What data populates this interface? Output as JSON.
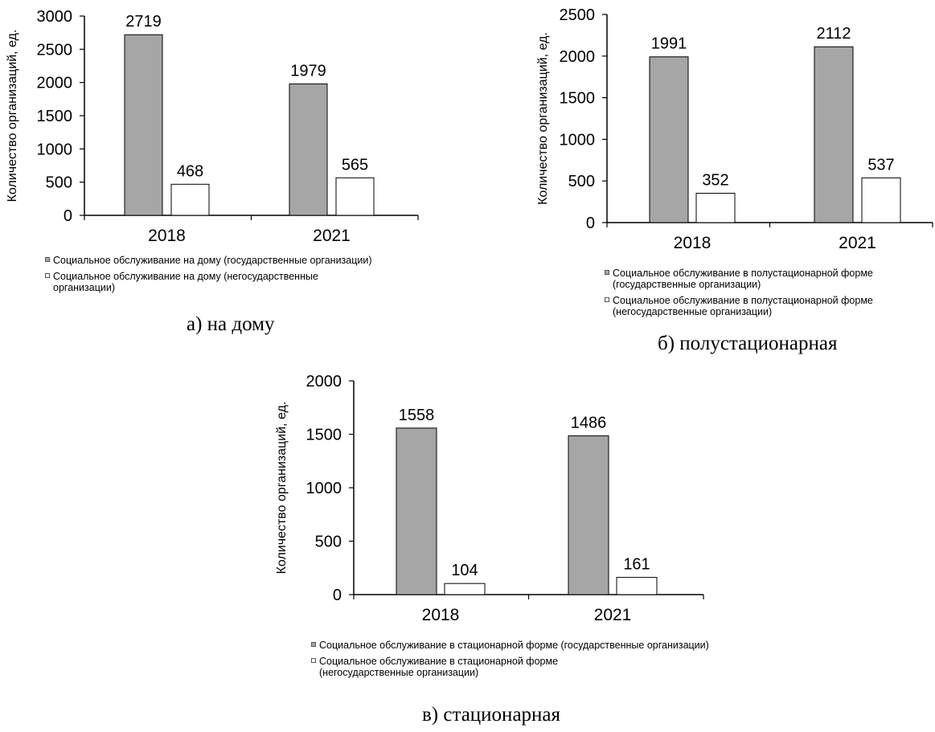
{
  "colors": {
    "state": "#a6a6a6",
    "nonstate": "#ffffff",
    "stroke": "#000000"
  },
  "chart_data": [
    {
      "id": "a",
      "type": "bar",
      "categories": [
        "2018",
        "2021"
      ],
      "series": [
        {
          "name": "Социальное обслуживание на дому (государственные организации)",
          "values": [
            2719,
            1979
          ]
        },
        {
          "name": "Социальное обслуживание на дому (негосударственные организации)",
          "values": [
            468,
            565
          ]
        }
      ],
      "ylabel": "Количество организаций, ед.",
      "ylim": [
        0,
        3000
      ],
      "yticks": [
        0,
        500,
        1000,
        1500,
        2000,
        2500,
        3000
      ],
      "legend": "bottom",
      "caption": "а) на дому"
    },
    {
      "id": "b",
      "type": "bar",
      "categories": [
        "2018",
        "2021"
      ],
      "series": [
        {
          "name": "Социальное обслуживание в полустационарной форме (государственные организации)",
          "values": [
            1991,
            2112
          ]
        },
        {
          "name": "Социальное обслуживание в полустационарной форме (негосударственные организации)",
          "values": [
            352,
            537
          ]
        }
      ],
      "ylabel": "Количество организаций, ед.",
      "ylim": [
        0,
        2500
      ],
      "yticks": [
        0,
        500,
        1000,
        1500,
        2000,
        2500
      ],
      "legend": "bottom",
      "caption": "б) полустационарная"
    },
    {
      "id": "c",
      "type": "bar",
      "categories": [
        "2018",
        "2021"
      ],
      "series": [
        {
          "name": "Социальное обслуживание в стационарной форме (государственные организации)",
          "values": [
            1558,
            1486
          ]
        },
        {
          "name": "Социальное обслуживание в стационарной форме (негосударственные организации)",
          "values": [
            104,
            161
          ]
        }
      ],
      "ylabel": "Количество организаций, ед.",
      "ylim": [
        0,
        2000
      ],
      "yticks": [
        0,
        500,
        1000,
        1500,
        2000
      ],
      "legend": "bottom",
      "caption": "в) стационарная"
    }
  ]
}
